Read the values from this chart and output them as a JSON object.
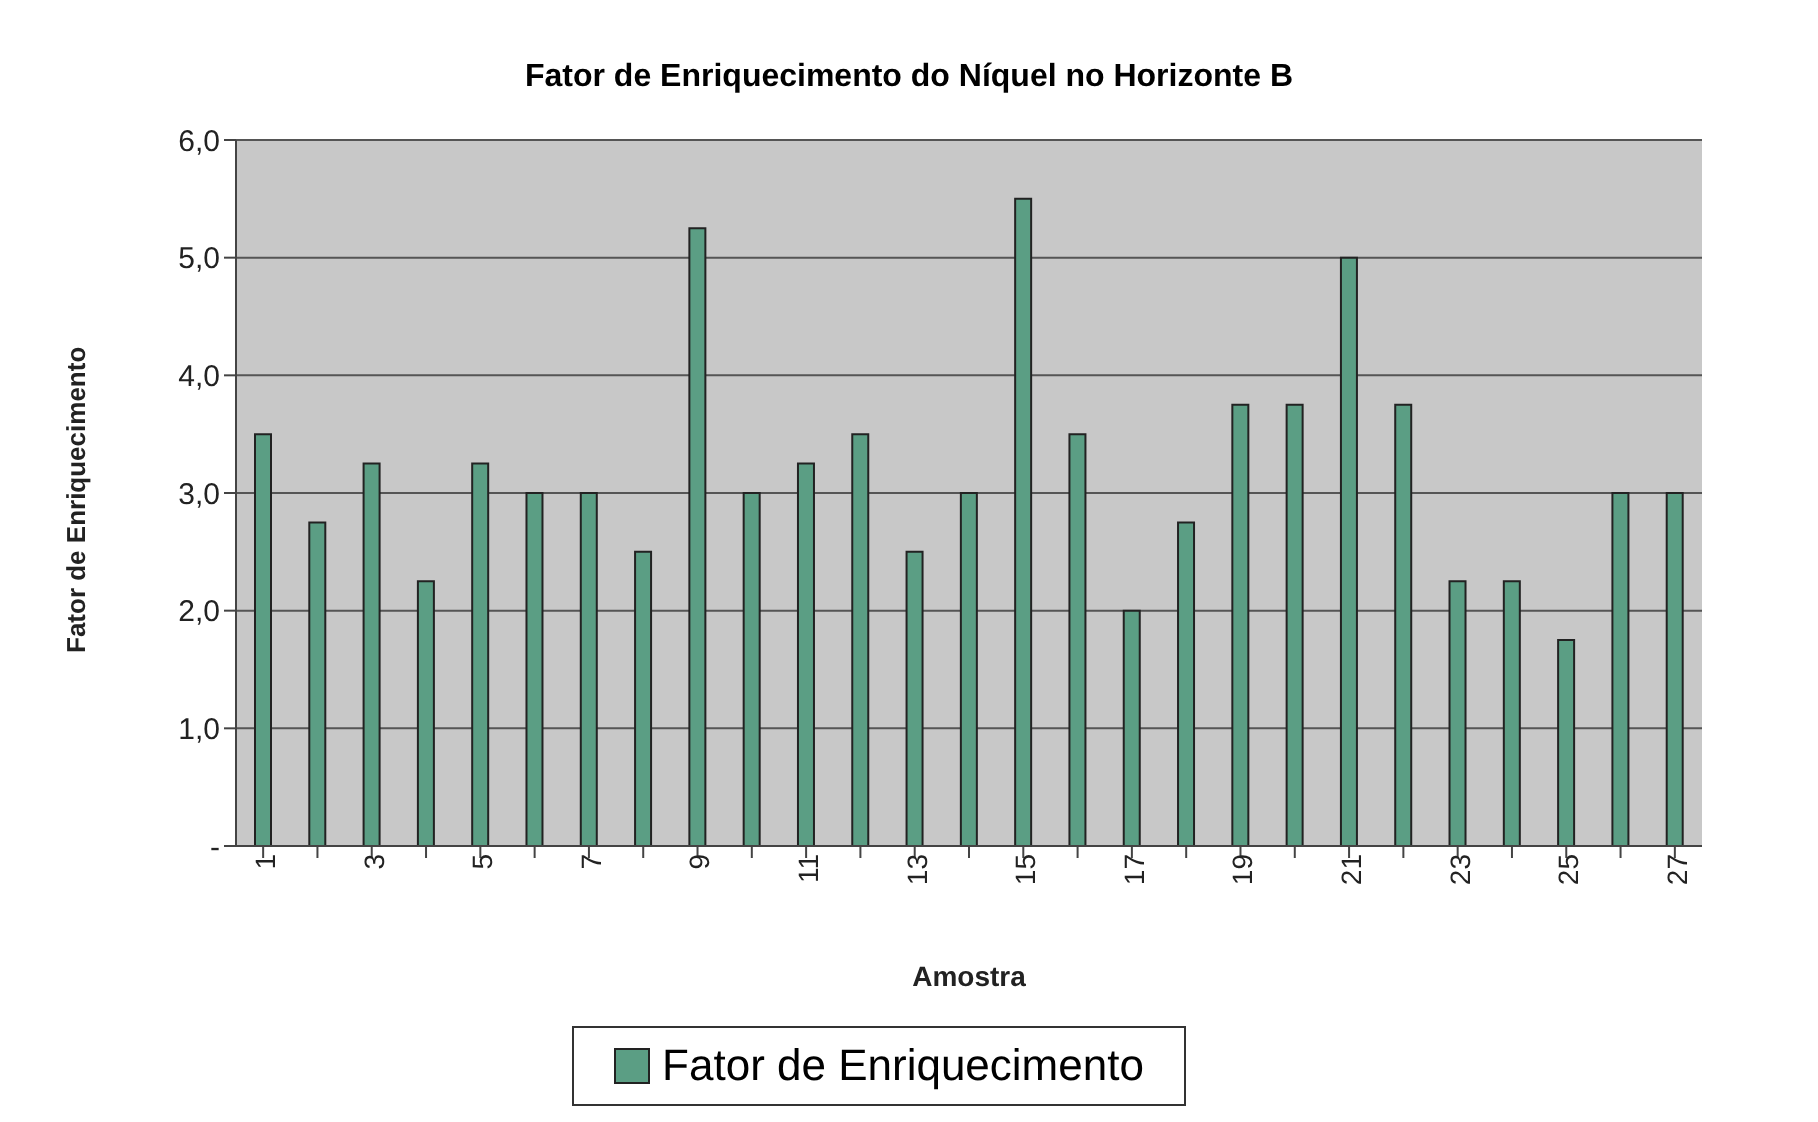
{
  "chart_data": {
    "type": "bar",
    "title": "Fator de Enriquecimento do Níquel no Horizonte B",
    "xlabel": "Amostra",
    "ylabel": "Fator de Enriquecimento",
    "categories": [
      "1",
      null,
      "3",
      null,
      "5",
      null,
      "7",
      null,
      "9",
      null,
      "11",
      null,
      "13",
      null,
      "15",
      null,
      "17",
      null,
      "19",
      null,
      "21",
      null,
      "23",
      null,
      "25",
      null,
      "27"
    ],
    "series": [
      {
        "name": "Fator de Enriquecimento",
        "color": "#5b9e84",
        "values": [
          3.5,
          2.75,
          3.25,
          2.25,
          3.25,
          3.0,
          3.0,
          2.5,
          5.25,
          3.0,
          3.25,
          3.5,
          2.5,
          3.0,
          5.5,
          3.5,
          2.0,
          2.75,
          3.75,
          3.75,
          5.0,
          3.75,
          2.25,
          2.25,
          1.75,
          3.0,
          3.0
        ]
      }
    ],
    "ylim": [
      0,
      6
    ],
    "yticks": [
      {
        "value": 0,
        "label": "-"
      },
      {
        "value": 1,
        "label": "1,0"
      },
      {
        "value": 2,
        "label": "2,0"
      },
      {
        "value": 3,
        "label": "3,0"
      },
      {
        "value": 4,
        "label": "4,0"
      },
      {
        "value": 5,
        "label": "5,0"
      },
      {
        "value": 6,
        "label": "6,0"
      }
    ],
    "grid": "y",
    "legend": "bottom"
  }
}
